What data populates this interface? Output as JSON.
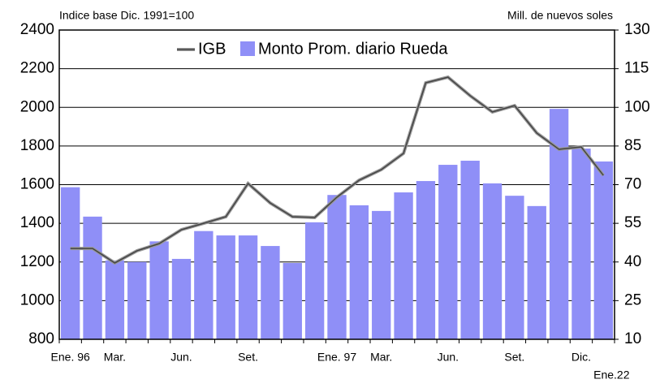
{
  "chart_data": {
    "type": "bar_line",
    "ylabel": "Indice base Dic. 1991=100",
    "y2label": "Mill. de nuevos soles",
    "categories": [
      "Ene. 96",
      null,
      "Mar.",
      null,
      null,
      "Jun.",
      null,
      null,
      "Set.",
      null,
      null,
      null,
      "Ene. 97",
      null,
      "Mar.",
      null,
      null,
      "Jun.",
      null,
      null,
      "Set.",
      null,
      null,
      "Dic.",
      "Ene.22"
    ],
    "series": [
      {
        "name": "IGB",
        "type": "line",
        "axis": "y",
        "color": "#444444",
        "values": [
          1270,
          1270,
          1195,
          1258,
          1295,
          1367,
          1400,
          1434,
          1606,
          1505,
          1434,
          1430,
          1535,
          1623,
          1678,
          1762,
          2127,
          2156,
          2060,
          1976,
          2009,
          1867,
          1783,
          1795,
          1648
        ]
      },
      {
        "name": "Monto Prom. diario Rueda",
        "type": "bar",
        "axis": "y2",
        "color": "#8f8ff7",
        "values": [
          69,
          57.6,
          40.6,
          40,
          48,
          41.2,
          52,
          50.3,
          50.3,
          46.2,
          39.6,
          55.4,
          66,
          62,
          59.8,
          67,
          71.4,
          77.7,
          79.3,
          70.5,
          65.7,
          61.7,
          99.4,
          84,
          79
        ]
      }
    ],
    "ylim": [
      800,
      2400
    ],
    "yticks": [
      800,
      1000,
      1200,
      1400,
      1600,
      1800,
      2000,
      2200,
      2400
    ],
    "y2lim": [
      10,
      130
    ],
    "y2ticks": [
      10,
      25,
      40,
      55,
      70,
      85,
      100,
      115,
      130
    ],
    "grid": true
  }
}
